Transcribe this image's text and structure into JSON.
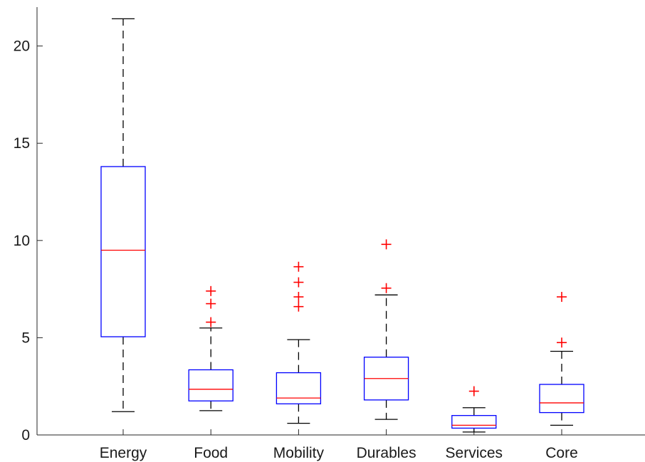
{
  "chart_data": {
    "type": "box",
    "categories": [
      "Energy",
      "Food",
      "Mobility",
      "Durables",
      "Services",
      "Core"
    ],
    "ylim": [
      0,
      22
    ],
    "yticks": [
      0,
      5,
      10,
      15,
      20
    ],
    "grid": false,
    "boxes": [
      {
        "name": "Energy",
        "min": 1.2,
        "q1": 5.05,
        "median": 9.5,
        "q3": 13.8,
        "max": 21.4,
        "outliers": []
      },
      {
        "name": "Food",
        "min": 1.25,
        "q1": 1.75,
        "median": 2.35,
        "q3": 3.35,
        "max": 5.5,
        "outliers": [
          5.8,
          6.75,
          7.4
        ]
      },
      {
        "name": "Mobility",
        "min": 0.6,
        "q1": 1.6,
        "median": 1.9,
        "q3": 3.2,
        "max": 4.9,
        "outliers": [
          6.6,
          7.1,
          7.85,
          8.65
        ]
      },
      {
        "name": "Durables",
        "min": 0.8,
        "q1": 1.8,
        "median": 2.9,
        "q3": 4.0,
        "max": 7.2,
        "outliers": [
          7.55,
          9.8
        ]
      },
      {
        "name": "Services",
        "min": 0.15,
        "q1": 0.35,
        "median": 0.5,
        "q3": 1.0,
        "max": 1.4,
        "outliers": [
          2.25
        ]
      },
      {
        "name": "Core",
        "min": 0.5,
        "q1": 1.15,
        "median": 1.65,
        "q3": 2.6,
        "max": 4.3,
        "outliers": [
          4.75,
          7.1
        ]
      }
    ],
    "colors": {
      "box": "#0000ff",
      "median": "#ff0000",
      "whisker": "#000000",
      "outlier": "#ff0000"
    }
  }
}
